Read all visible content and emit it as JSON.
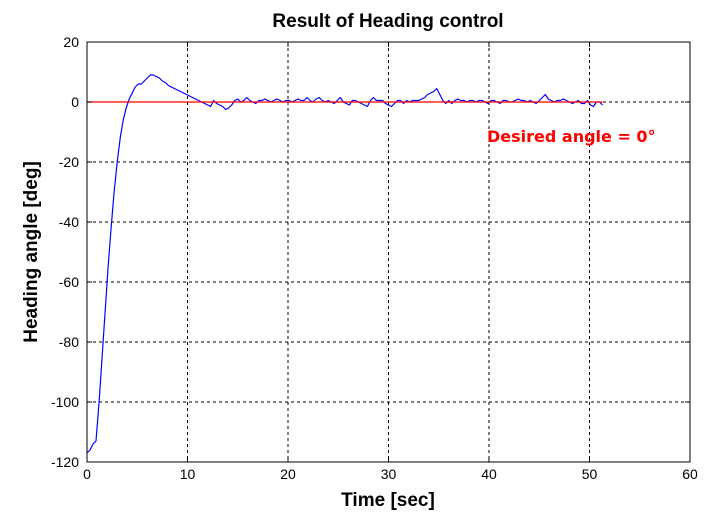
{
  "chart_data": {
    "type": "line",
    "title": "Result of Heading control",
    "xlabel": "Time [sec]",
    "ylabel": "Heading angle [deg]",
    "xlim": [
      0,
      60
    ],
    "ylim": [
      -120,
      20
    ],
    "xticks": [
      0,
      10,
      20,
      30,
      40,
      50,
      60
    ],
    "yticks": [
      20,
      0,
      -20,
      -40,
      -60,
      -80,
      -100,
      -120
    ],
    "grid": true,
    "annotation": {
      "text": "Desired angle = 0°",
      "color": "#ff0000"
    },
    "series": [
      {
        "color": "#0000ff",
        "x": [
          0,
          0.3,
          0.6,
          0.9,
          1.2,
          1.5,
          1.8,
          2.1,
          2.4,
          2.7,
          3.0,
          3.3,
          3.6,
          3.9,
          4.2,
          4.5,
          4.8,
          5.1,
          5.4,
          5.7,
          6.0,
          6.3,
          6.6,
          6.9,
          7.2,
          7.5,
          7.8,
          8.1,
          8.4,
          8.7,
          9.0,
          9.3,
          9.6,
          9.9,
          10.2,
          10.5,
          10.8,
          11.1,
          11.4,
          11.7,
          12.0,
          12.3,
          12.6,
          12.9,
          13.2,
          13.5,
          13.8,
          14.1,
          14.4,
          14.7,
          15.0,
          15.3,
          15.6,
          15.9,
          16.2,
          16.5,
          16.8,
          17.1,
          17.4,
          17.7,
          18.0,
          18.3,
          18.6,
          18.9,
          19.2,
          19.5,
          19.8,
          20.1,
          20.4,
          20.7,
          21.0,
          21.3,
          21.6,
          21.9,
          22.2,
          22.5,
          22.8,
          23.1,
          23.4,
          23.7,
          24.0,
          24.3,
          24.6,
          24.9,
          25.2,
          25.5,
          25.8,
          26.1,
          26.4,
          26.7,
          27.0,
          27.3,
          27.6,
          27.9,
          28.2,
          28.5,
          28.8,
          29.1,
          29.4,
          29.7,
          30.0,
          30.3,
          30.6,
          30.9,
          31.2,
          31.5,
          31.8,
          32.1,
          32.4,
          32.7,
          33.0,
          33.3,
          33.6,
          33.9,
          34.2,
          34.5,
          34.8,
          35.1,
          35.4,
          35.7,
          36.0,
          36.3,
          36.6,
          36.9,
          37.2,
          37.5,
          37.8,
          38.1,
          38.4,
          38.7,
          39.0,
          39.3,
          39.6,
          39.9,
          40.2,
          40.5,
          40.8,
          41.1,
          41.4,
          41.7,
          42.0,
          42.3,
          42.6,
          42.9,
          43.2,
          43.5,
          43.8,
          44.1,
          44.4,
          44.7,
          45.0,
          45.3,
          45.6,
          45.9,
          46.2,
          46.5,
          46.8,
          47.1,
          47.4,
          47.7,
          48.0,
          48.3,
          48.6,
          48.9,
          49.2,
          49.5,
          49.8,
          50.1,
          50.4,
          50.7,
          51.0,
          51.3
        ],
        "y": [
          -117,
          -116,
          -114,
          -113,
          -100,
          -85,
          -70,
          -55,
          -42,
          -30,
          -20,
          -12,
          -6,
          -2,
          1,
          3,
          5,
          6,
          6,
          7,
          8,
          9,
          9,
          8.5,
          8,
          7,
          6.5,
          5.5,
          5,
          4.5,
          4,
          3.5,
          3,
          2.5,
          2,
          1.5,
          1,
          0.5,
          0,
          -0.5,
          -1,
          -1.5,
          0.5,
          -0.5,
          -1,
          -1.5,
          -2.5,
          -2,
          -1,
          0.5,
          1,
          0,
          0.5,
          1.5,
          0.5,
          0,
          -0.5,
          0.5,
          0.5,
          1,
          0.5,
          0,
          0.5,
          1,
          0.5,
          0,
          0.5,
          0.5,
          0,
          0.5,
          1,
          0.5,
          0.5,
          1.5,
          0.5,
          0,
          1,
          1.5,
          0.5,
          0,
          0.5,
          0,
          -0.5,
          0.5,
          1.5,
          0,
          -0.5,
          -1,
          0.5,
          0.5,
          0,
          -0.5,
          -1,
          -1.5,
          0.5,
          1.5,
          0.5,
          0.5,
          0.5,
          -0.5,
          -1,
          -1.5,
          -0.5,
          0.5,
          0.5,
          -0.5,
          0.5,
          0,
          0.5,
          0.5,
          0.5,
          1,
          1.5,
          2.5,
          3,
          3.5,
          4.5,
          2.5,
          0.5,
          -0.5,
          0.5,
          -0.5,
          0.5,
          1,
          0.5,
          0.5,
          0,
          0.5,
          0.5,
          0,
          0.5,
          0.5,
          0,
          -0.5,
          0.5,
          0.5,
          0,
          -0.5,
          0.5,
          0.5,
          0,
          0,
          0.5,
          1,
          0.5,
          0.5,
          0,
          0.5,
          0,
          -0.5,
          0.5,
          1.5,
          2.5,
          1,
          0.5,
          0,
          0.5,
          0.5,
          1,
          0.5,
          0,
          -0.5,
          0,
          0.5,
          -0.5,
          -0.5,
          0.5,
          -1,
          -1.5,
          0,
          0,
          -1
        ]
      },
      {
        "color": "#ff0000",
        "x": [
          0,
          51.3
        ],
        "y": [
          0,
          0
        ]
      }
    ]
  }
}
